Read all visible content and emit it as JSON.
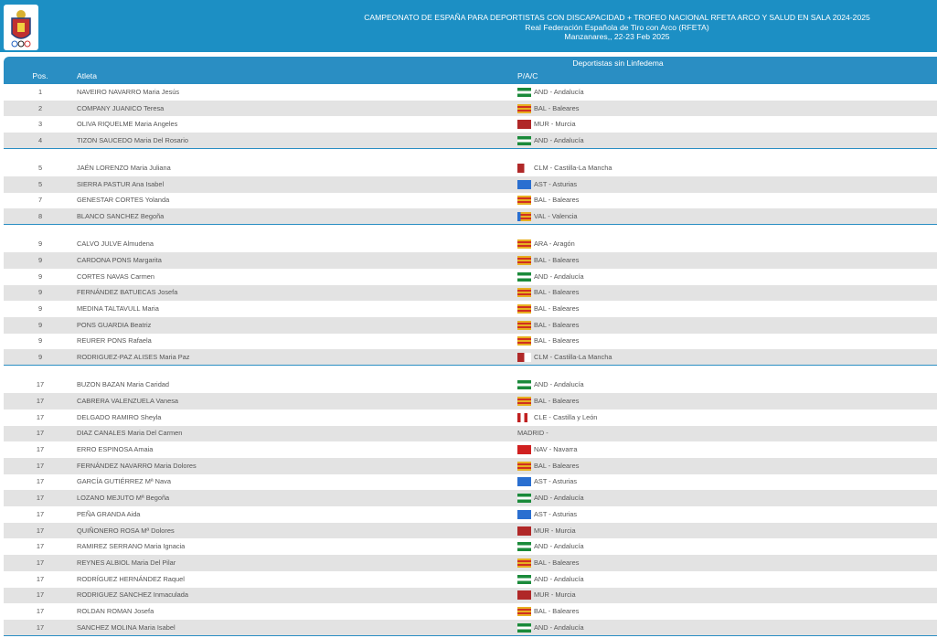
{
  "header": {
    "lines": [
      "CAMPEONATO DE ESPAÑA PARA DEPORTISTAS CON DISCAPACIDAD + TROFEO NACIONAL RFETA ARCO Y SALUD EN SALA 2024-2025",
      "Real Federación Española de Tiro con Arco (RFETA)",
      "Manzanares,, 22-23 Feb 2025"
    ]
  },
  "table": {
    "caption": "Deportistas sin Linfedema",
    "columns": [
      "Pos.",
      "Atleta",
      "P/A/C"
    ],
    "groups": [
      {
        "rows": [
          [
            "1",
            "NAVEIRO NAVARRO Maria Jesús",
            "AND - Andalucía"
          ],
          [
            "2",
            "COMPANY JUANICO Teresa",
            "BAL - Baleares"
          ],
          [
            "3",
            "OLIVA RIQUELME Maria Angeles",
            "MUR - Murcia"
          ],
          [
            "4",
            "TIZON SAUCEDO Maria Del Rosario",
            "AND - Andalucía"
          ]
        ]
      },
      {
        "rows": [
          [
            "5",
            "JAÉN LORENZO Maria Juliana",
            "CLM - Castilla-La Mancha"
          ],
          [
            "5",
            "SIERRA PASTUR Ana Isabel",
            "AST - Asturias"
          ],
          [
            "7",
            "GENESTAR CORTES Yolanda",
            "BAL - Baleares"
          ],
          [
            "8",
            "BLANCO SANCHEZ Begoña",
            "VAL - Valencia"
          ]
        ]
      },
      {
        "rows": [
          [
            "9",
            "CALVO JULVE Almudena",
            "ARA - Aragón"
          ],
          [
            "9",
            "CARDONA PONS Margarita",
            "BAL - Baleares"
          ],
          [
            "9",
            "CORTES NAVAS Carmen",
            "AND - Andalucía"
          ],
          [
            "9",
            "FERNÁNDEZ BATUECAS Josefa",
            "BAL - Baleares"
          ],
          [
            "9",
            "MEDINA TALTAVULL Maria",
            "BAL - Baleares"
          ],
          [
            "9",
            "PONS GUARDIA Beatriz",
            "BAL - Baleares"
          ],
          [
            "9",
            "REURER PONS Rafaela",
            "BAL - Baleares"
          ],
          [
            "9",
            "RODRIGUEZ-PAZ ALISES Maria Paz",
            "CLM - Castilla-La Mancha"
          ]
        ]
      },
      {
        "rows": [
          [
            "17",
            "BUZON BAZAN Maria Caridad",
            "AND - Andalucía"
          ],
          [
            "17",
            "CABRERA VALENZUELA Vanesa",
            "BAL - Baleares"
          ],
          [
            "17",
            "DELGADO RAMIRO Sheyla",
            "CLE - Castilla y León"
          ],
          [
            "17",
            "DIAZ CANALES Maria Del Carmen",
            "MADRID -"
          ],
          [
            "17",
            "ERRO ESPINOSA Amaia",
            "NAV - Navarra"
          ],
          [
            "17",
            "FERNÁNDEZ NAVARRO Maria Dolores",
            "BAL - Baleares"
          ],
          [
            "17",
            "GARCÍA GUTIÉRREZ Mª Nava",
            "AST - Asturias"
          ],
          [
            "17",
            "LOZANO MEJUTO Mª Begoña",
            "AND - Andalucía"
          ],
          [
            "17",
            "PEÑA GRANDA Aida",
            "AST - Asturias"
          ],
          [
            "17",
            "QUIÑONERO ROSA Mª Dolores",
            "MUR - Murcia"
          ],
          [
            "17",
            "RAMIREZ SERRANO Maria Ignacia",
            "AND - Andalucía"
          ],
          [
            "17",
            "REYNES ALBIOL Maria Del Pilar",
            "BAL - Baleares"
          ],
          [
            "17",
            "RODRÍGUEZ HERNÁNDEZ Raquel",
            "AND - Andalucía"
          ],
          [
            "17",
            "RODRIGUEZ SANCHEZ Inmaculada",
            "MUR - Murcia"
          ],
          [
            "17",
            "ROLDAN ROMAN Josefa",
            "BAL - Baleares"
          ],
          [
            "17",
            "SANCHEZ MOLINA Maria Isabel",
            "AND - Andalucía"
          ]
        ]
      }
    ]
  }
}
